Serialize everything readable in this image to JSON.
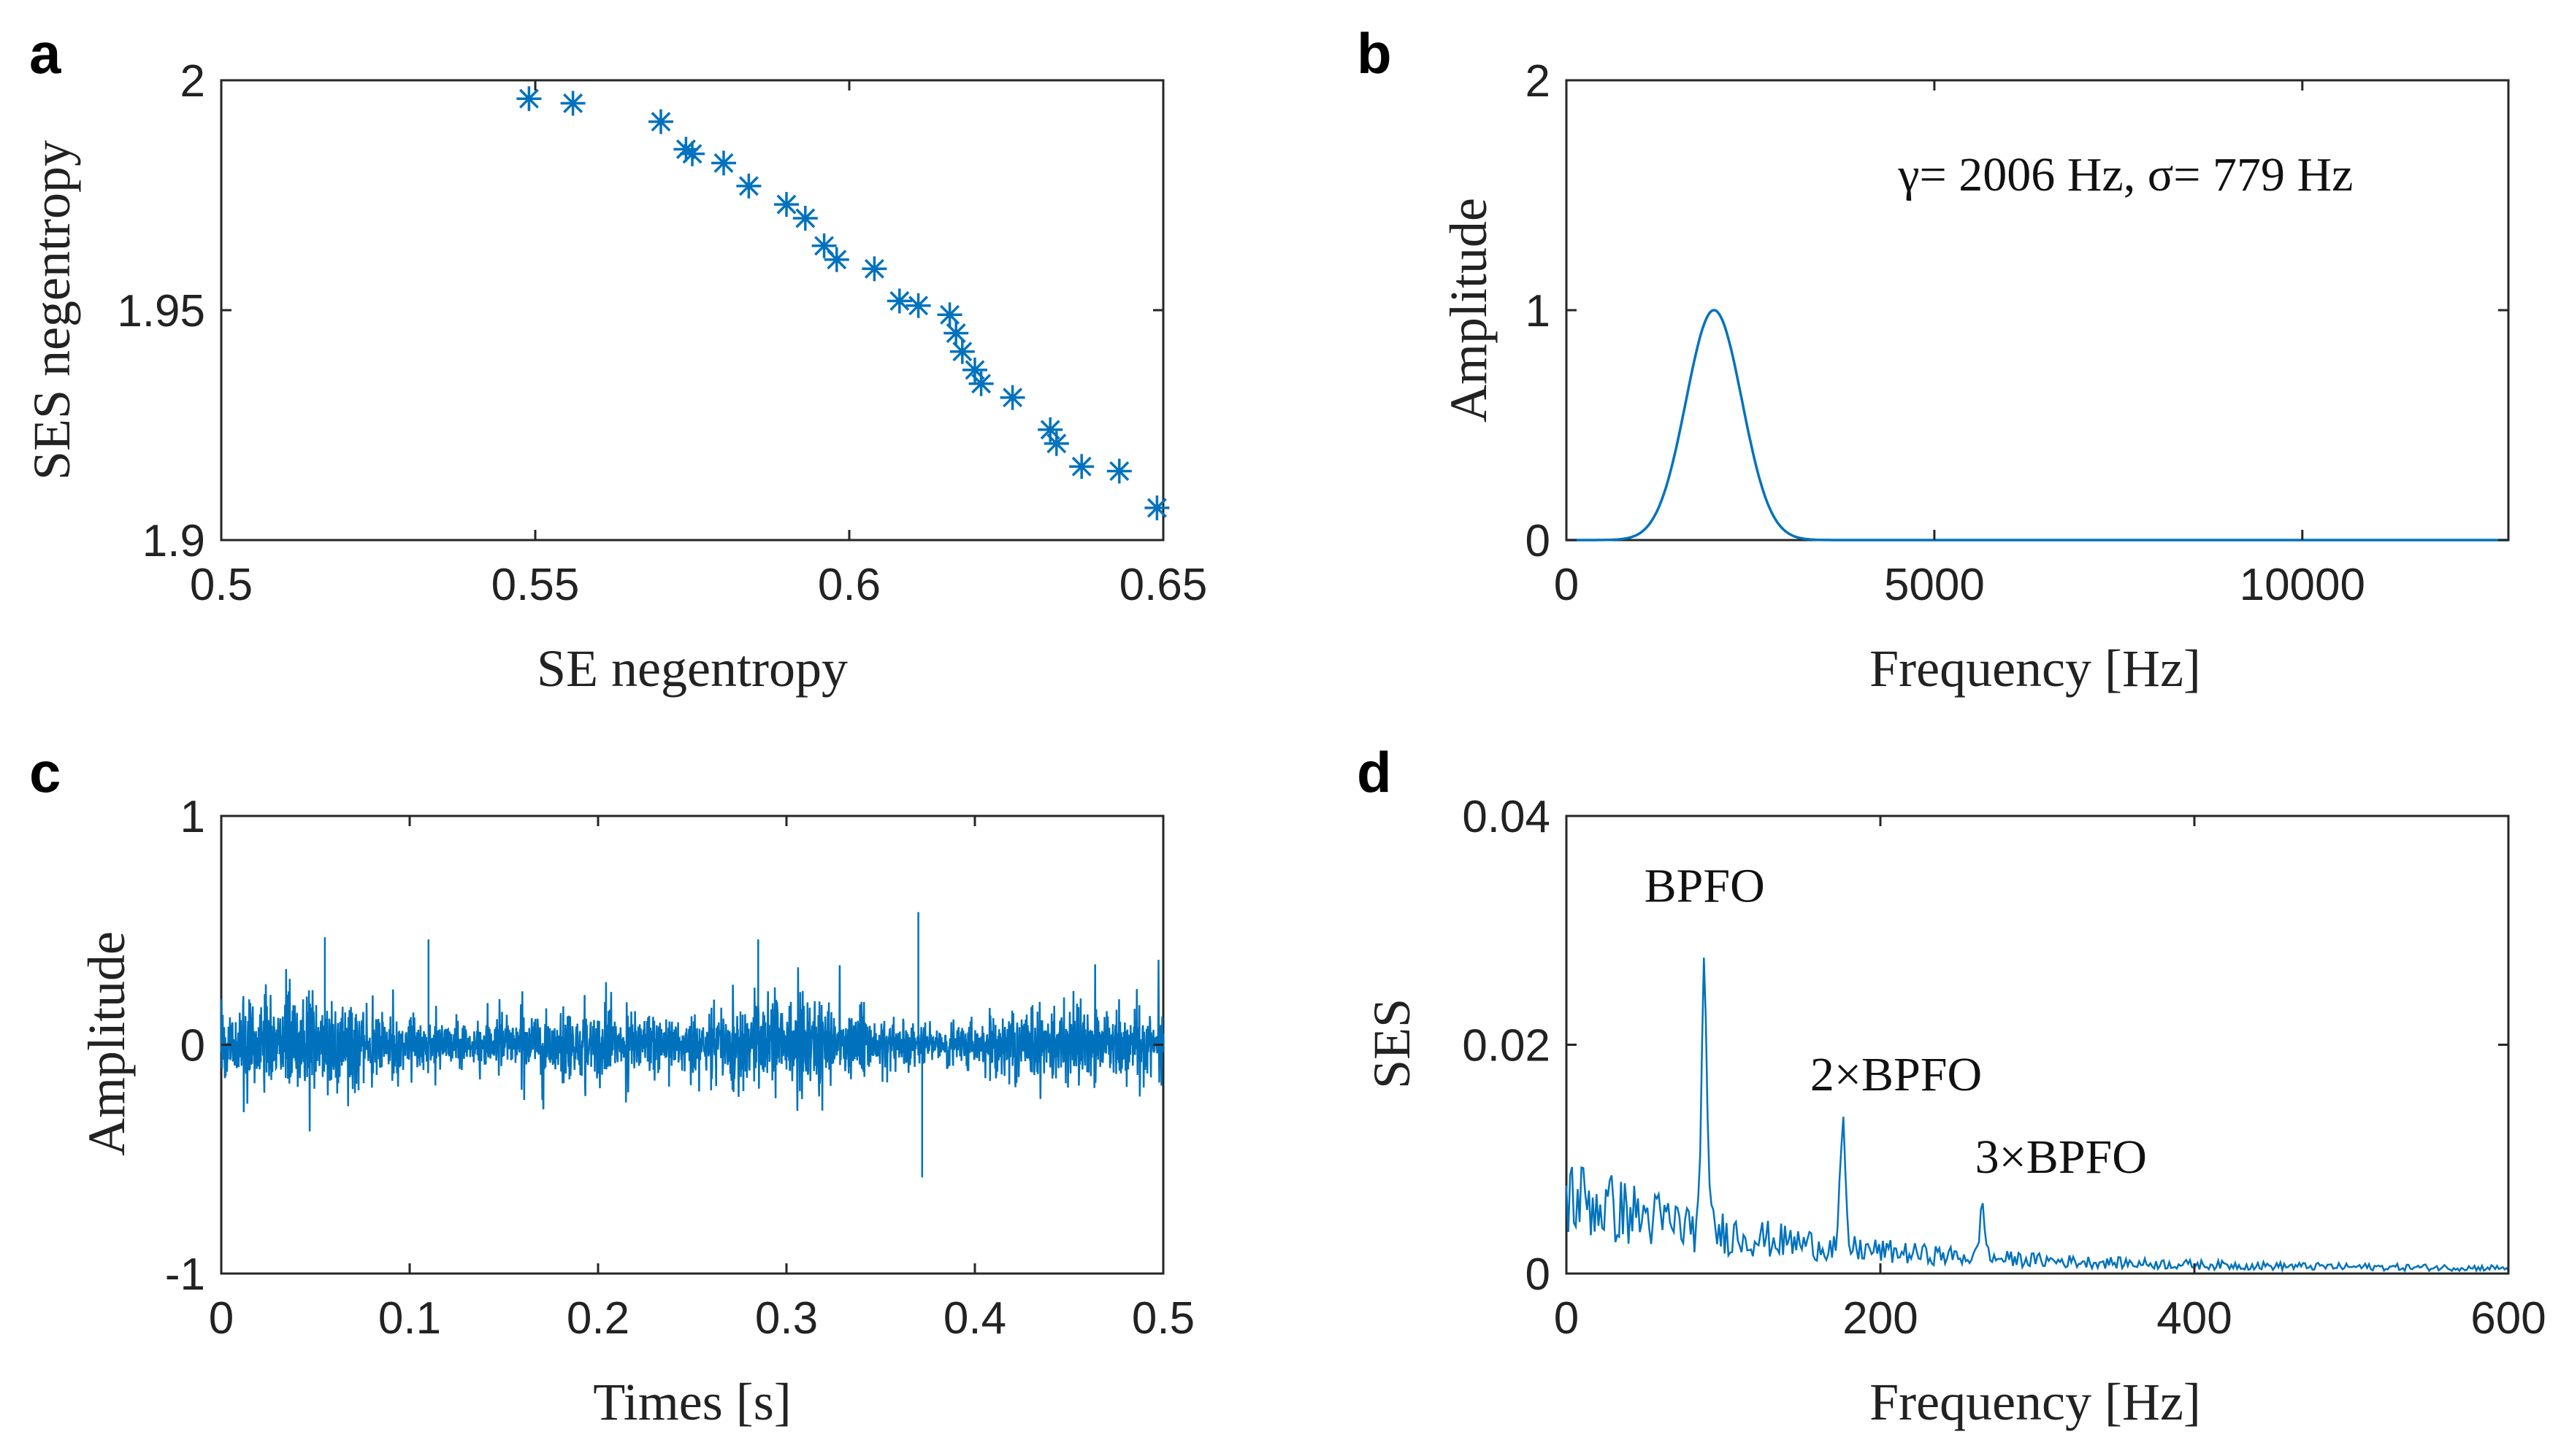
{
  "colors": {
    "series": "#0072BD",
    "axes": "#262626"
  },
  "chart_data": [
    {
      "panel": "a",
      "type": "scatter",
      "marker": "asterisk",
      "xlabel": "SE negentropy",
      "ylabel": "SES negentropy",
      "xlim": [
        0.5,
        0.65
      ],
      "ylim": [
        1.9,
        2.0
      ],
      "xticks": [
        "0.5",
        "0.55",
        "0.6",
        "0.65"
      ],
      "yticks": [
        "1.9",
        "1.95",
        "2"
      ],
      "points": [
        [
          0.549,
          1.996
        ],
        [
          0.556,
          1.995
        ],
        [
          0.57,
          1.991
        ],
        [
          0.574,
          1.985
        ],
        [
          0.575,
          1.984
        ],
        [
          0.58,
          1.982
        ],
        [
          0.584,
          1.977
        ],
        [
          0.59,
          1.973
        ],
        [
          0.593,
          1.97
        ],
        [
          0.596,
          1.964
        ],
        [
          0.598,
          1.961
        ],
        [
          0.604,
          1.959
        ],
        [
          0.608,
          1.952
        ],
        [
          0.611,
          1.951
        ],
        [
          0.616,
          1.949
        ],
        [
          0.617,
          1.945
        ],
        [
          0.618,
          1.941
        ],
        [
          0.62,
          1.937
        ],
        [
          0.621,
          1.934
        ],
        [
          0.626,
          1.931
        ],
        [
          0.632,
          1.924
        ],
        [
          0.633,
          1.921
        ],
        [
          0.637,
          1.916
        ],
        [
          0.643,
          1.915
        ],
        [
          0.649,
          1.907
        ]
      ]
    },
    {
      "panel": "b",
      "type": "line",
      "xlabel": "Frequency [Hz]",
      "ylabel": "Amplitude",
      "xlim": [
        0,
        12800
      ],
      "ylim": [
        0,
        2
      ],
      "xticks": [
        "0",
        "5000",
        "10000"
      ],
      "yticks": [
        "0",
        "1",
        "2"
      ],
      "curve": {
        "shape": "gaussian",
        "center": 2006,
        "sigma": 779,
        "peak": 1
      },
      "annotation": {
        "text": "γ= 2006 Hz, σ= 779 Hz",
        "x": 7600,
        "y": 1.52
      }
    },
    {
      "panel": "c",
      "type": "line",
      "xlabel": "Times [s]",
      "ylabel": "Amplitude",
      "xlim": [
        0,
        0.5
      ],
      "ylim": [
        -1,
        1
      ],
      "xticks": [
        "0",
        "0.1",
        "0.2",
        "0.3",
        "0.4",
        "0.5"
      ],
      "yticks": [
        "-1",
        "0",
        "1"
      ],
      "signal": {
        "kind": "vibration",
        "typical_amplitude": 0.25,
        "impulse_period": 0.0113,
        "max_peak": 0.58,
        "min_peak": -0.58
      }
    },
    {
      "panel": "d",
      "type": "line",
      "xlabel": "Frequency [Hz]",
      "ylabel": "SES",
      "xlim": [
        0,
        600
      ],
      "ylim": [
        0,
        0.04
      ],
      "xticks": [
        "0",
        "200",
        "400",
        "600"
      ],
      "yticks": [
        "0",
        "0.02",
        "0.04"
      ],
      "peaks": [
        {
          "x": 88,
          "y": 0.027
        },
        {
          "x": 176,
          "y": 0.0128
        },
        {
          "x": 265,
          "y": 0.006
        }
      ],
      "annotations": [
        {
          "text": "BPFO",
          "x": 88,
          "y": 0.0325
        },
        {
          "text": "2×BPFO",
          "x": 210,
          "y": 0.016
        },
        {
          "text": "3×BPFO",
          "x": 315,
          "y": 0.0088
        }
      ]
    }
  ]
}
